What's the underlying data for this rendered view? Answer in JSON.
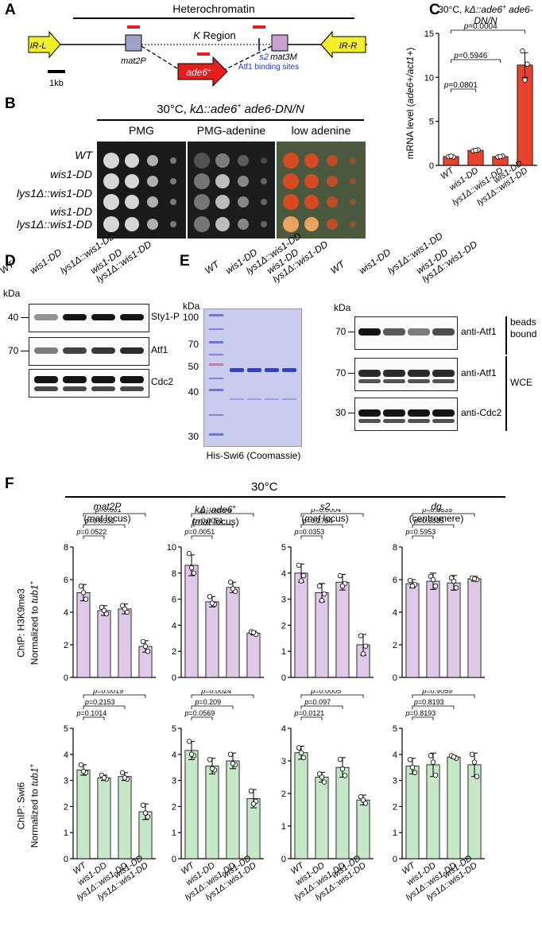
{
  "panels": {
    "a": "A",
    "b": "B",
    "c": "C",
    "d": "D",
    "e": "E",
    "f": "F"
  },
  "panel_a": {
    "title": "Heterochromatin",
    "k_region": "K Region",
    "ir_l": "IR-L",
    "ir_r": "IR-R",
    "mat2p": "mat2P",
    "mat3m": "mat3M",
    "ade6": "ade6",
    "ade6_sup": "+",
    "s2": "s2",
    "atf1_sites": "Atf1 binding sites",
    "scale": "1kb"
  },
  "panel_b": {
    "condition": "30°C, kΔ::ade6+ ade6-DN/N",
    "media": [
      "PMG",
      "PMG-adenine",
      "low adenine"
    ],
    "strains": [
      "WT",
      "wis1-DD",
      "lys1Δ::wis1-DD",
      "wis1-DD",
      "lys1Δ::wis1-DD"
    ]
  },
  "panel_d": {
    "kda": "kDa",
    "lanes": [
      "WT",
      "wis1-DD",
      "lys1Δ::wis1-DD",
      "wis1-DD lys1Δ::wis1-DD"
    ],
    "lane_lines": [
      [
        "WT"
      ],
      [
        "wis1-DD"
      ],
      [
        "lys1Δ::wis1-DD"
      ],
      [
        "wis1-DD",
        "lys1Δ::wis1-DD"
      ]
    ],
    "blots": [
      {
        "marker": "40",
        "label": "Sty1-P"
      },
      {
        "marker": "70",
        "label": "Atf1"
      },
      {
        "marker": "",
        "label": "Cdc2"
      }
    ]
  },
  "panel_e": {
    "kda": "kDa",
    "gel_markers": [
      "100",
      "70",
      "50",
      "40",
      "30"
    ],
    "gel_caption": "His-Swi6 (Coomassie)",
    "lane_lines": [
      [
        "WT"
      ],
      [
        "wis1-DD"
      ],
      [
        "lys1Δ::wis1-DD"
      ],
      [
        "wis1-DD",
        "lys1Δ::wis1-DD"
      ]
    ],
    "kda2": "kDa",
    "blots": [
      {
        "marker": "70",
        "label": "anti-Atf1"
      },
      {
        "marker": "70",
        "label": "anti-Atf1"
      },
      {
        "marker": "30",
        "label": "anti-Cdc2"
      }
    ],
    "groups": [
      "beads",
      "bound",
      "WCE"
    ]
  },
  "panel_f": {
    "title": "30°C",
    "x_categories": [
      "WT",
      "wis1-DD",
      "lys1Δ::wis1-DD",
      "wis1-DD lys1Δ::wis1-DD"
    ],
    "loci": [
      {
        "name": "mat2P",
        "sub": "(mat locus)"
      },
      {
        "name": "kΔ::ade6+",
        "sub": "(mat locus)"
      },
      {
        "name": "s2",
        "sub": "(mat locus)"
      },
      {
        "name": "dg",
        "sub": "(centromere)"
      }
    ],
    "row_labels": [
      [
        "ChIP: H3K9me3",
        "Normalized to tub1+"
      ],
      [
        "ChIP: Swi6",
        "Normalized to tub1+"
      ]
    ]
  },
  "chart_data": [
    {
      "panel": "C",
      "type": "bar",
      "title": "30°C, kΔ::ade6+ ade6-DN/N",
      "ylabel": "mRNA level (ade6+/act1+)",
      "categories": [
        "WT",
        "wis1-DD",
        "lys1Δ::wis1-DD",
        "wis1-DD lys1Δ::wis1-DD"
      ],
      "values": [
        1.0,
        1.7,
        1.0,
        11.4
      ],
      "errors": [
        0.1,
        0.1,
        0.1,
        1.4
      ],
      "points": [
        [
          1.0,
          0.95,
          1.05
        ],
        [
          1.65,
          1.75,
          1.7
        ],
        [
          0.95,
          1.05,
          1.0
        ],
        [
          13.0,
          11.5,
          9.7
        ]
      ],
      "ylim": [
        0,
        15
      ],
      "yticks": [
        0,
        5,
        10,
        15
      ],
      "comparisons": [
        [
          "p=0.0801",
          0,
          1
        ],
        [
          "p=0.5946",
          0,
          2
        ],
        [
          "p=0.0004",
          0,
          3
        ]
      ],
      "bar_color": "#e8432f"
    },
    {
      "panel": "F",
      "row": 0,
      "col": 0,
      "type": "bar",
      "categories": [
        "WT",
        "wis1-DD",
        "lys1Δ::wis1-DD",
        "wis1-DD lys1Δ::wis1-DD"
      ],
      "values": [
        5.2,
        4.1,
        4.2,
        1.9
      ],
      "errors": [
        0.5,
        0.3,
        0.3,
        0.35
      ],
      "points": [
        [
          5.6,
          4.8,
          5.2
        ],
        [
          4.3,
          3.9,
          4.1
        ],
        [
          4.4,
          4.0,
          4.2
        ],
        [
          2.2,
          1.6,
          1.9
        ]
      ],
      "ylim": [
        0,
        8
      ],
      "yticks": [
        0,
        2,
        4,
        6,
        8
      ],
      "comparisons": [
        [
          "p=0.0522",
          0,
          1
        ],
        [
          "p=0.0532",
          0,
          2
        ],
        [
          "p=0.001",
          0,
          3
        ]
      ],
      "bar_color": "#dfc8e8"
    },
    {
      "panel": "F",
      "row": 0,
      "col": 1,
      "type": "bar",
      "categories": [
        "WT",
        "wis1-DD",
        "lys1Δ::wis1-DD",
        "wis1-DD lys1Δ::wis1-DD"
      ],
      "values": [
        8.6,
        5.8,
        6.9,
        3.4
      ],
      "errors": [
        0.8,
        0.4,
        0.4,
        0.15
      ],
      "points": [
        [
          9.5,
          8.0,
          8.4
        ],
        [
          6.2,
          5.6,
          5.7
        ],
        [
          7.3,
          6.6,
          6.8
        ],
        [
          3.5,
          3.3,
          3.45
        ]
      ],
      "ylim": [
        0,
        10
      ],
      "yticks": [
        0,
        2,
        4,
        6,
        8,
        10
      ],
      "comparisons": [
        [
          "p=0.0051",
          0,
          1
        ],
        [
          "p=0.0051",
          0,
          2
        ],
        [
          "p=0.0004",
          0,
          3
        ]
      ],
      "bar_color": "#dfc8e8"
    },
    {
      "panel": "F",
      "row": 0,
      "col": 2,
      "type": "bar",
      "categories": [
        "WT",
        "wis1-DD",
        "lys1Δ::wis1-DD",
        "wis1-DD lys1Δ::wis1-DD"
      ],
      "values": [
        4.0,
        3.25,
        3.65,
        1.25
      ],
      "errors": [
        0.35,
        0.35,
        0.3,
        0.4
      ],
      "points": [
        [
          4.3,
          3.9,
          3.7
        ],
        [
          3.5,
          3.2,
          2.95
        ],
        [
          3.9,
          3.6,
          3.5
        ],
        [
          1.6,
          1.2,
          0.9
        ]
      ],
      "ylim": [
        0,
        5
      ],
      "yticks": [
        0,
        1,
        2,
        3,
        4,
        5
      ],
      "comparisons": [
        [
          "p=0.0353",
          0,
          1
        ],
        [
          "p=0.2784",
          0,
          2
        ],
        [
          "p=0.0004",
          0,
          3
        ]
      ],
      "bar_color": "#dfc8e8"
    },
    {
      "panel": "F",
      "row": 0,
      "col": 3,
      "type": "bar",
      "categories": [
        "WT",
        "wis1-DD",
        "lys1Δ::wis1-DD",
        "wis1-DD lys1Δ::wis1-DD"
      ],
      "values": [
        5.75,
        5.9,
        5.8,
        6.05
      ],
      "errors": [
        0.25,
        0.5,
        0.45,
        0.15
      ],
      "points": [
        [
          5.95,
          5.7,
          5.6
        ],
        [
          6.2,
          5.6,
          6.0
        ],
        [
          6.1,
          5.5,
          5.9
        ],
        [
          6.1,
          6.0,
          6.05
        ]
      ],
      "ylim": [
        0,
        8
      ],
      "yticks": [
        0,
        2,
        4,
        6,
        8
      ],
      "comparisons": [
        [
          "p=0.5953",
          0,
          1
        ],
        [
          "p=0.6835",
          0,
          2
        ],
        [
          "p=0.6835",
          0,
          3
        ]
      ],
      "bar_color": "#dfc8e8"
    },
    {
      "panel": "F",
      "row": 1,
      "col": 0,
      "type": "bar",
      "categories": [
        "WT",
        "wis1-DD",
        "lys1Δ::wis1-DD",
        "wis1-DD lys1Δ::wis1-DD"
      ],
      "values": [
        3.4,
        3.1,
        3.15,
        1.8
      ],
      "errors": [
        0.2,
        0.1,
        0.15,
        0.3
      ],
      "points": [
        [
          3.6,
          3.3,
          3.35
        ],
        [
          3.2,
          3.05,
          3.1
        ],
        [
          3.3,
          3.05,
          3.1
        ],
        [
          2.05,
          1.6,
          1.75
        ]
      ],
      "ylim": [
        0,
        5
      ],
      "yticks": [
        0,
        1,
        2,
        3,
        4,
        5
      ],
      "comparisons": [
        [
          "p=0.1014",
          0,
          1
        ],
        [
          "p=0.2153",
          0,
          2
        ],
        [
          "p=0.0019",
          0,
          3
        ]
      ],
      "bar_color": "#c6e8c8"
    },
    {
      "panel": "F",
      "row": 1,
      "col": 1,
      "type": "bar",
      "categories": [
        "WT",
        "wis1-DD",
        "lys1Δ::wis1-DD",
        "wis1-DD lys1Δ::wis1-DD"
      ],
      "values": [
        4.15,
        3.55,
        3.75,
        2.3
      ],
      "errors": [
        0.35,
        0.3,
        0.3,
        0.35
      ],
      "points": [
        [
          4.5,
          3.95,
          4.0
        ],
        [
          3.8,
          3.4,
          3.45
        ],
        [
          4.0,
          3.6,
          3.65
        ],
        [
          2.6,
          2.2,
          2.1
        ]
      ],
      "ylim": [
        0,
        5
      ],
      "yticks": [
        0,
        1,
        2,
        3,
        4,
        5
      ],
      "comparisons": [
        [
          "p=0.0569",
          0,
          1
        ],
        [
          "p=0.209",
          0,
          2
        ],
        [
          "p=0.0024",
          0,
          3
        ]
      ],
      "bar_color": "#c6e8c8"
    },
    {
      "panel": "F",
      "row": 1,
      "col": 2,
      "type": "bar",
      "categories": [
        "WT",
        "wis1-DD",
        "lys1Δ::wis1-DD",
        "wis1-DD lys1Δ::wis1-DD"
      ],
      "values": [
        3.25,
        2.5,
        2.8,
        1.8
      ],
      "errors": [
        0.2,
        0.15,
        0.3,
        0.15
      ],
      "points": [
        [
          3.4,
          3.1,
          3.25
        ],
        [
          2.6,
          2.35,
          2.5
        ],
        [
          3.05,
          2.55,
          2.75
        ],
        [
          1.9,
          1.7,
          1.8
        ]
      ],
      "ylim": [
        0,
        4
      ],
      "yticks": [
        0,
        1,
        2,
        3,
        4
      ],
      "comparisons": [
        [
          "p=0.0121",
          0,
          1
        ],
        [
          "p=0.097",
          0,
          2
        ],
        [
          "p=0.0005",
          0,
          3
        ]
      ],
      "bar_color": "#c6e8c8"
    },
    {
      "panel": "F",
      "row": 1,
      "col": 3,
      "type": "bar",
      "categories": [
        "WT",
        "wis1-DD",
        "lys1Δ::wis1-DD",
        "wis1-DD lys1Δ::wis1-DD"
      ],
      "values": [
        3.55,
        3.6,
        3.9,
        3.6
      ],
      "errors": [
        0.3,
        0.45,
        0.05,
        0.45
      ],
      "points": [
        [
          3.8,
          3.3,
          3.5
        ],
        [
          3.95,
          3.2,
          3.7
        ],
        [
          3.95,
          3.85,
          3.9
        ],
        [
          4.0,
          3.15,
          3.7
        ]
      ],
      "ylim": [
        0,
        5
      ],
      "yticks": [
        0,
        1,
        2,
        3,
        4,
        5
      ],
      "comparisons": [
        [
          "p=0.8193",
          0,
          1
        ],
        [
          "p=0.8193",
          0,
          2
        ],
        [
          "p=0.9059",
          0,
          3
        ]
      ],
      "bar_color": "#c6e8c8"
    }
  ]
}
